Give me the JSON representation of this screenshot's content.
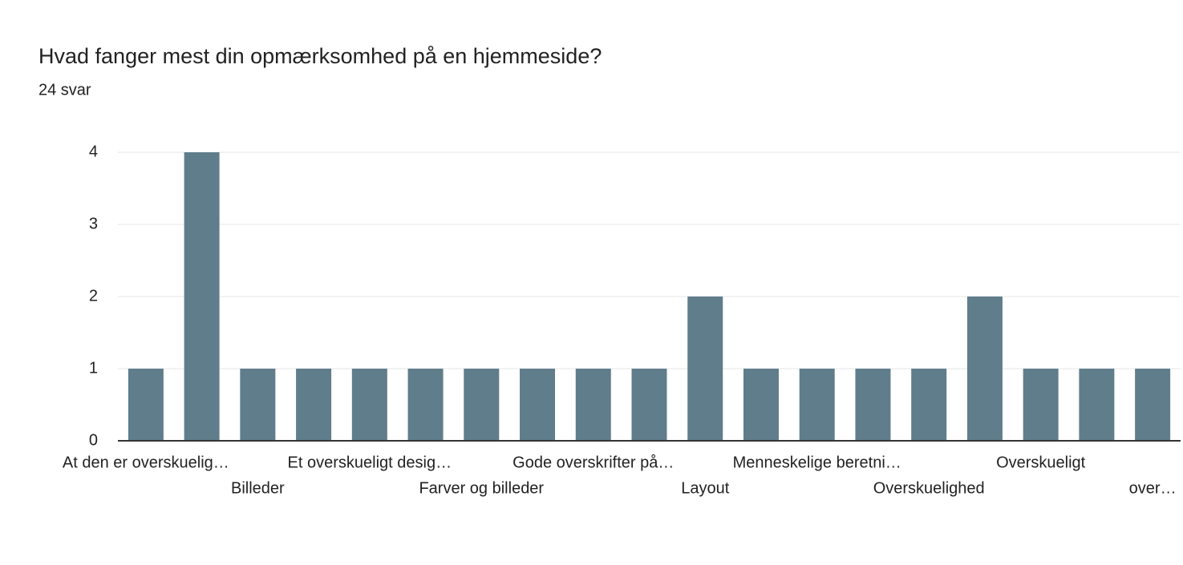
{
  "chart_data": {
    "type": "bar",
    "title": "Hvad fanger mest din opmærksomhed på en hjemmeside?",
    "subtitle": "24 svar",
    "categories": [
      "At den er overskuelig…",
      null,
      "Billeder",
      null,
      "Et overskueligt desig…",
      null,
      "Farver og billeder",
      null,
      "Gode overskrifter på…",
      null,
      "Layout",
      null,
      "Menneskelige beretni…",
      null,
      "Overskuelighed",
      null,
      "Overskueligt",
      null,
      "over…"
    ],
    "values": [
      1,
      4,
      1,
      1,
      1,
      1,
      1,
      1,
      1,
      1,
      2,
      1,
      1,
      1,
      1,
      2,
      1,
      1,
      1
    ],
    "color": "#607d8b",
    "ylim": [
      0,
      4
    ],
    "yticks": [
      0,
      1,
      2,
      3,
      4
    ],
    "grid": true
  }
}
